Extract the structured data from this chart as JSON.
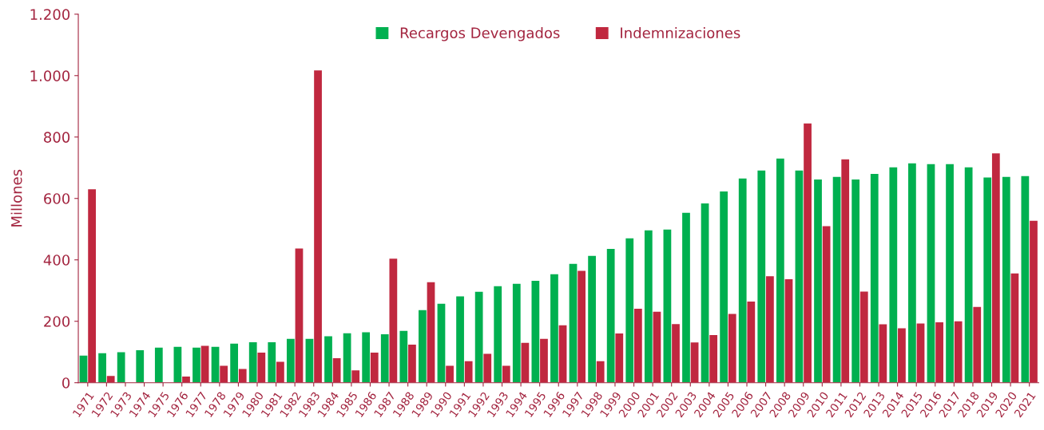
{
  "chart_data": {
    "type": "bar",
    "ylabel": "Millones",
    "categories": [
      "1971",
      "1972",
      "1973",
      "1974",
      "1975",
      "1976",
      "1977",
      "1978",
      "1979",
      "1980",
      "1981",
      "1982",
      "1983",
      "1984",
      "1985",
      "1986",
      "1987",
      "1988",
      "1989",
      "1990",
      "1991",
      "1992",
      "1993",
      "1994",
      "1995",
      "1996",
      "1997",
      "1998",
      "1999",
      "2000",
      "2001",
      "2002",
      "2003",
      "2004",
      "2005",
      "2006",
      "2007",
      "2008",
      "2009",
      "2010",
      "2011",
      "2012",
      "2013",
      "2014",
      "2015",
      "2016",
      "2017",
      "2018",
      "2019",
      "2020",
      "2021"
    ],
    "series": [
      {
        "name": "Recargos Devengados",
        "color": "#00b050",
        "values": [
          88,
          96,
          99,
          106,
          114,
          117,
          114,
          117,
          127,
          132,
          132,
          143,
          143,
          151,
          161,
          164,
          158,
          169,
          236,
          257,
          281,
          296,
          314,
          322,
          332,
          353,
          387,
          413,
          436,
          470,
          496,
          499,
          553,
          584,
          623,
          665,
          691,
          730,
          691,
          662,
          670,
          662,
          680,
          701,
          714,
          712,
          712,
          701,
          668,
          670,
          673
        ]
      },
      {
        "name": "Indemnizaciones",
        "color": "#c0283f",
        "values": [
          630,
          22,
          0,
          0,
          0,
          20,
          120,
          55,
          45,
          98,
          68,
          437,
          1017,
          80,
          40,
          98,
          404,
          124,
          327,
          55,
          70,
          94,
          55,
          130,
          143,
          187,
          364,
          70,
          160,
          241,
          231,
          191,
          131,
          155,
          224,
          264,
          347,
          337,
          844,
          510,
          727,
          297,
          190,
          177,
          193,
          197,
          200,
          247,
          747,
          356,
          527
        ]
      }
    ],
    "ylim": [
      0,
      1200
    ],
    "yticks": [
      {
        "value": 0,
        "label": "0"
      },
      {
        "value": 200,
        "label": "200"
      },
      {
        "value": 400,
        "label": "400"
      },
      {
        "value": 600,
        "label": "600"
      },
      {
        "value": 800,
        "label": "800"
      },
      {
        "value": 1000,
        "label": "1.000"
      },
      {
        "value": 1200,
        "label": "1.200"
      }
    ],
    "grid": false,
    "legend": "top"
  }
}
